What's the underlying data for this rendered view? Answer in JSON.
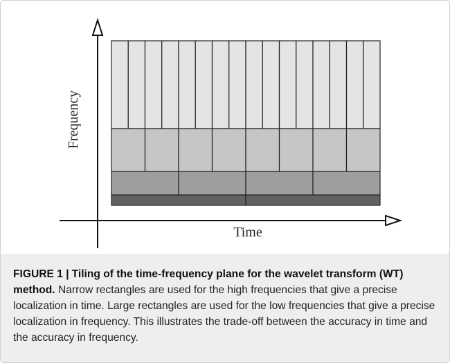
{
  "figure": {
    "x_label": "Time",
    "y_label": "Frequency"
  },
  "caption": {
    "label": "FIGURE 1 |",
    "title": "Tiling of the time-frequency plane for the wavelet transform (WT) method.",
    "body": "Narrow rectangles are used for the high frequencies that give a precise localization in time. Large rectangles are used for the low frequencies that give a precise localization in frequency. This illustrates the trade-off between the accuracy in time and the accuracy in frequency."
  }
}
